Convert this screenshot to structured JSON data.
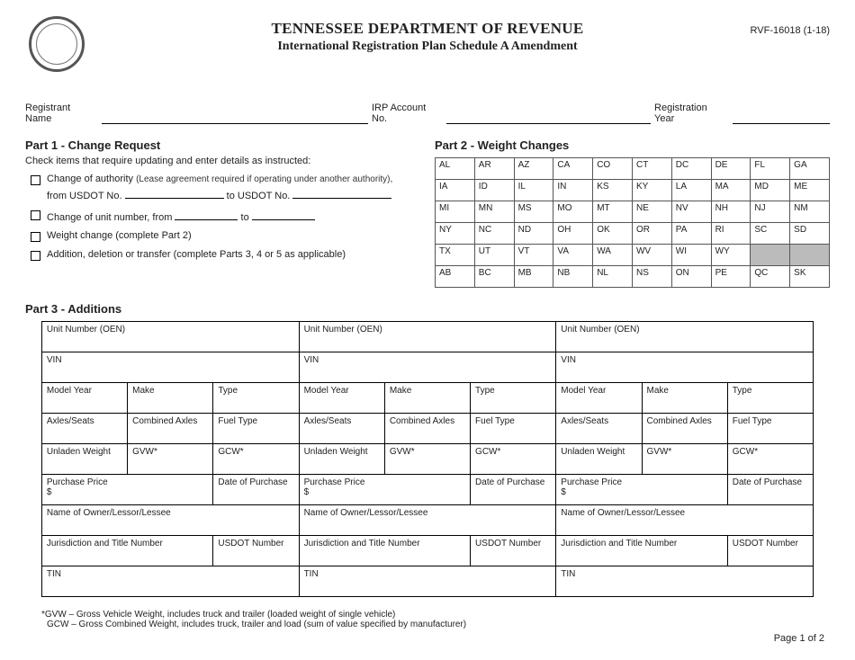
{
  "header": {
    "dept": "TENNESSEE DEPARTMENT OF REVENUE",
    "subtitle": "International Registration Plan Schedule A Amendment",
    "form_no": "RVF-16018 (1-18)"
  },
  "registrant": {
    "name_label": "Registrant Name",
    "acct_label": "IRP Account No.",
    "year_label": "Registration Year"
  },
  "part1": {
    "title": "Part 1 - Change Request",
    "instr": "Check items that require updating and enter details as instructed:",
    "opt1a": "Change of authority",
    "opt1b": "(Lease agreement required if operating under another authority),",
    "opt1_from": "from USDOT No.",
    "opt1_to": "to USDOT No.",
    "opt2a": "Change of unit number, from",
    "opt2b": "to",
    "opt3": "Weight change (complete Part 2)",
    "opt4": "Addition, deletion or transfer (complete Parts 3, 4 or 5 as applicable)"
  },
  "part2": {
    "title": "Part 2 - Weight Changes",
    "rows": [
      [
        "AL",
        "AR",
        "AZ",
        "CA",
        "CO",
        "CT",
        "DC",
        "DE",
        "FL",
        "GA"
      ],
      [
        "IA",
        "ID",
        "IL",
        "IN",
        "KS",
        "KY",
        "LA",
        "MA",
        "MD",
        "ME"
      ],
      [
        "MI",
        "MN",
        "MS",
        "MO",
        "MT",
        "NE",
        "NV",
        "NH",
        "NJ",
        "NM"
      ],
      [
        "NY",
        "NC",
        "ND",
        "OH",
        "OK",
        "OR",
        "PA",
        "RI",
        "SC",
        "SD"
      ],
      [
        "TX",
        "UT",
        "VT",
        "VA",
        "WA",
        "WV",
        "WI",
        "WY",
        "",
        ""
      ],
      [
        "AB",
        "BC",
        "MB",
        "NB",
        "NL",
        "NS",
        "ON",
        "PE",
        "QC",
        "SK"
      ]
    ]
  },
  "part3": {
    "title": "Part 3 - Additions",
    "unit": "Unit Number (OEN)",
    "vin": "VIN",
    "modelyear": "Model Year",
    "make": "Make",
    "type": "Type",
    "axles": "Axles/Seats",
    "combaxles": "Combined Axles",
    "fuel": "Fuel Type",
    "unladen": "Unladen Weight",
    "gvw": "GVW*",
    "gcw": "GCW*",
    "price": "Purchase Price",
    "dollar": "$",
    "dop": "Date of Purchase",
    "owner": "Name of Owner/Lessor/Lessee",
    "juris": "Jurisdiction and Title Number",
    "usdot": "USDOT Number",
    "tin": "TIN"
  },
  "footnotes": {
    "gvw": "*GVW – Gross Vehicle Weight, includes truck and trailer (loaded weight of single vehicle)",
    "gcw": "GCW – Gross Combined Weight, includes truck, trailer and load (sum of value specified by manufacturer)"
  },
  "page": "Page 1 of 2"
}
